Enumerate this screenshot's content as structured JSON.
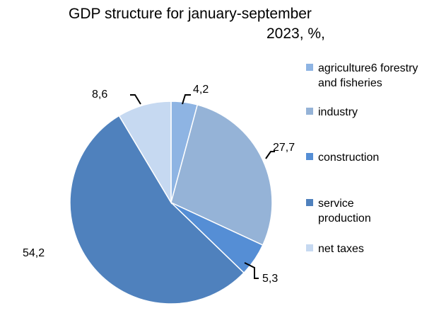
{
  "chart_data": {
    "type": "pie",
    "title": "GDP structure for january-september 2023, %,",
    "title_lines": [
      "GDP structure for january-september",
      "2023, %,"
    ],
    "categories": [
      "agriculture6 forestry and fisheries",
      "industry",
      "construction",
      "service production",
      "net taxes"
    ],
    "values": [
      4.2,
      27.7,
      5.3,
      54.2,
      8.6
    ],
    "value_labels": [
      "4,2",
      "27,7",
      "5,3",
      "54,2",
      "8,6"
    ],
    "colors": [
      "#8EB4E3",
      "#95B3D7",
      "#558ED5",
      "#4F81BD",
      "#C6D9F1"
    ],
    "legend_position": "right",
    "start_angle": "12 o'clock",
    "direction": "clockwise"
  }
}
